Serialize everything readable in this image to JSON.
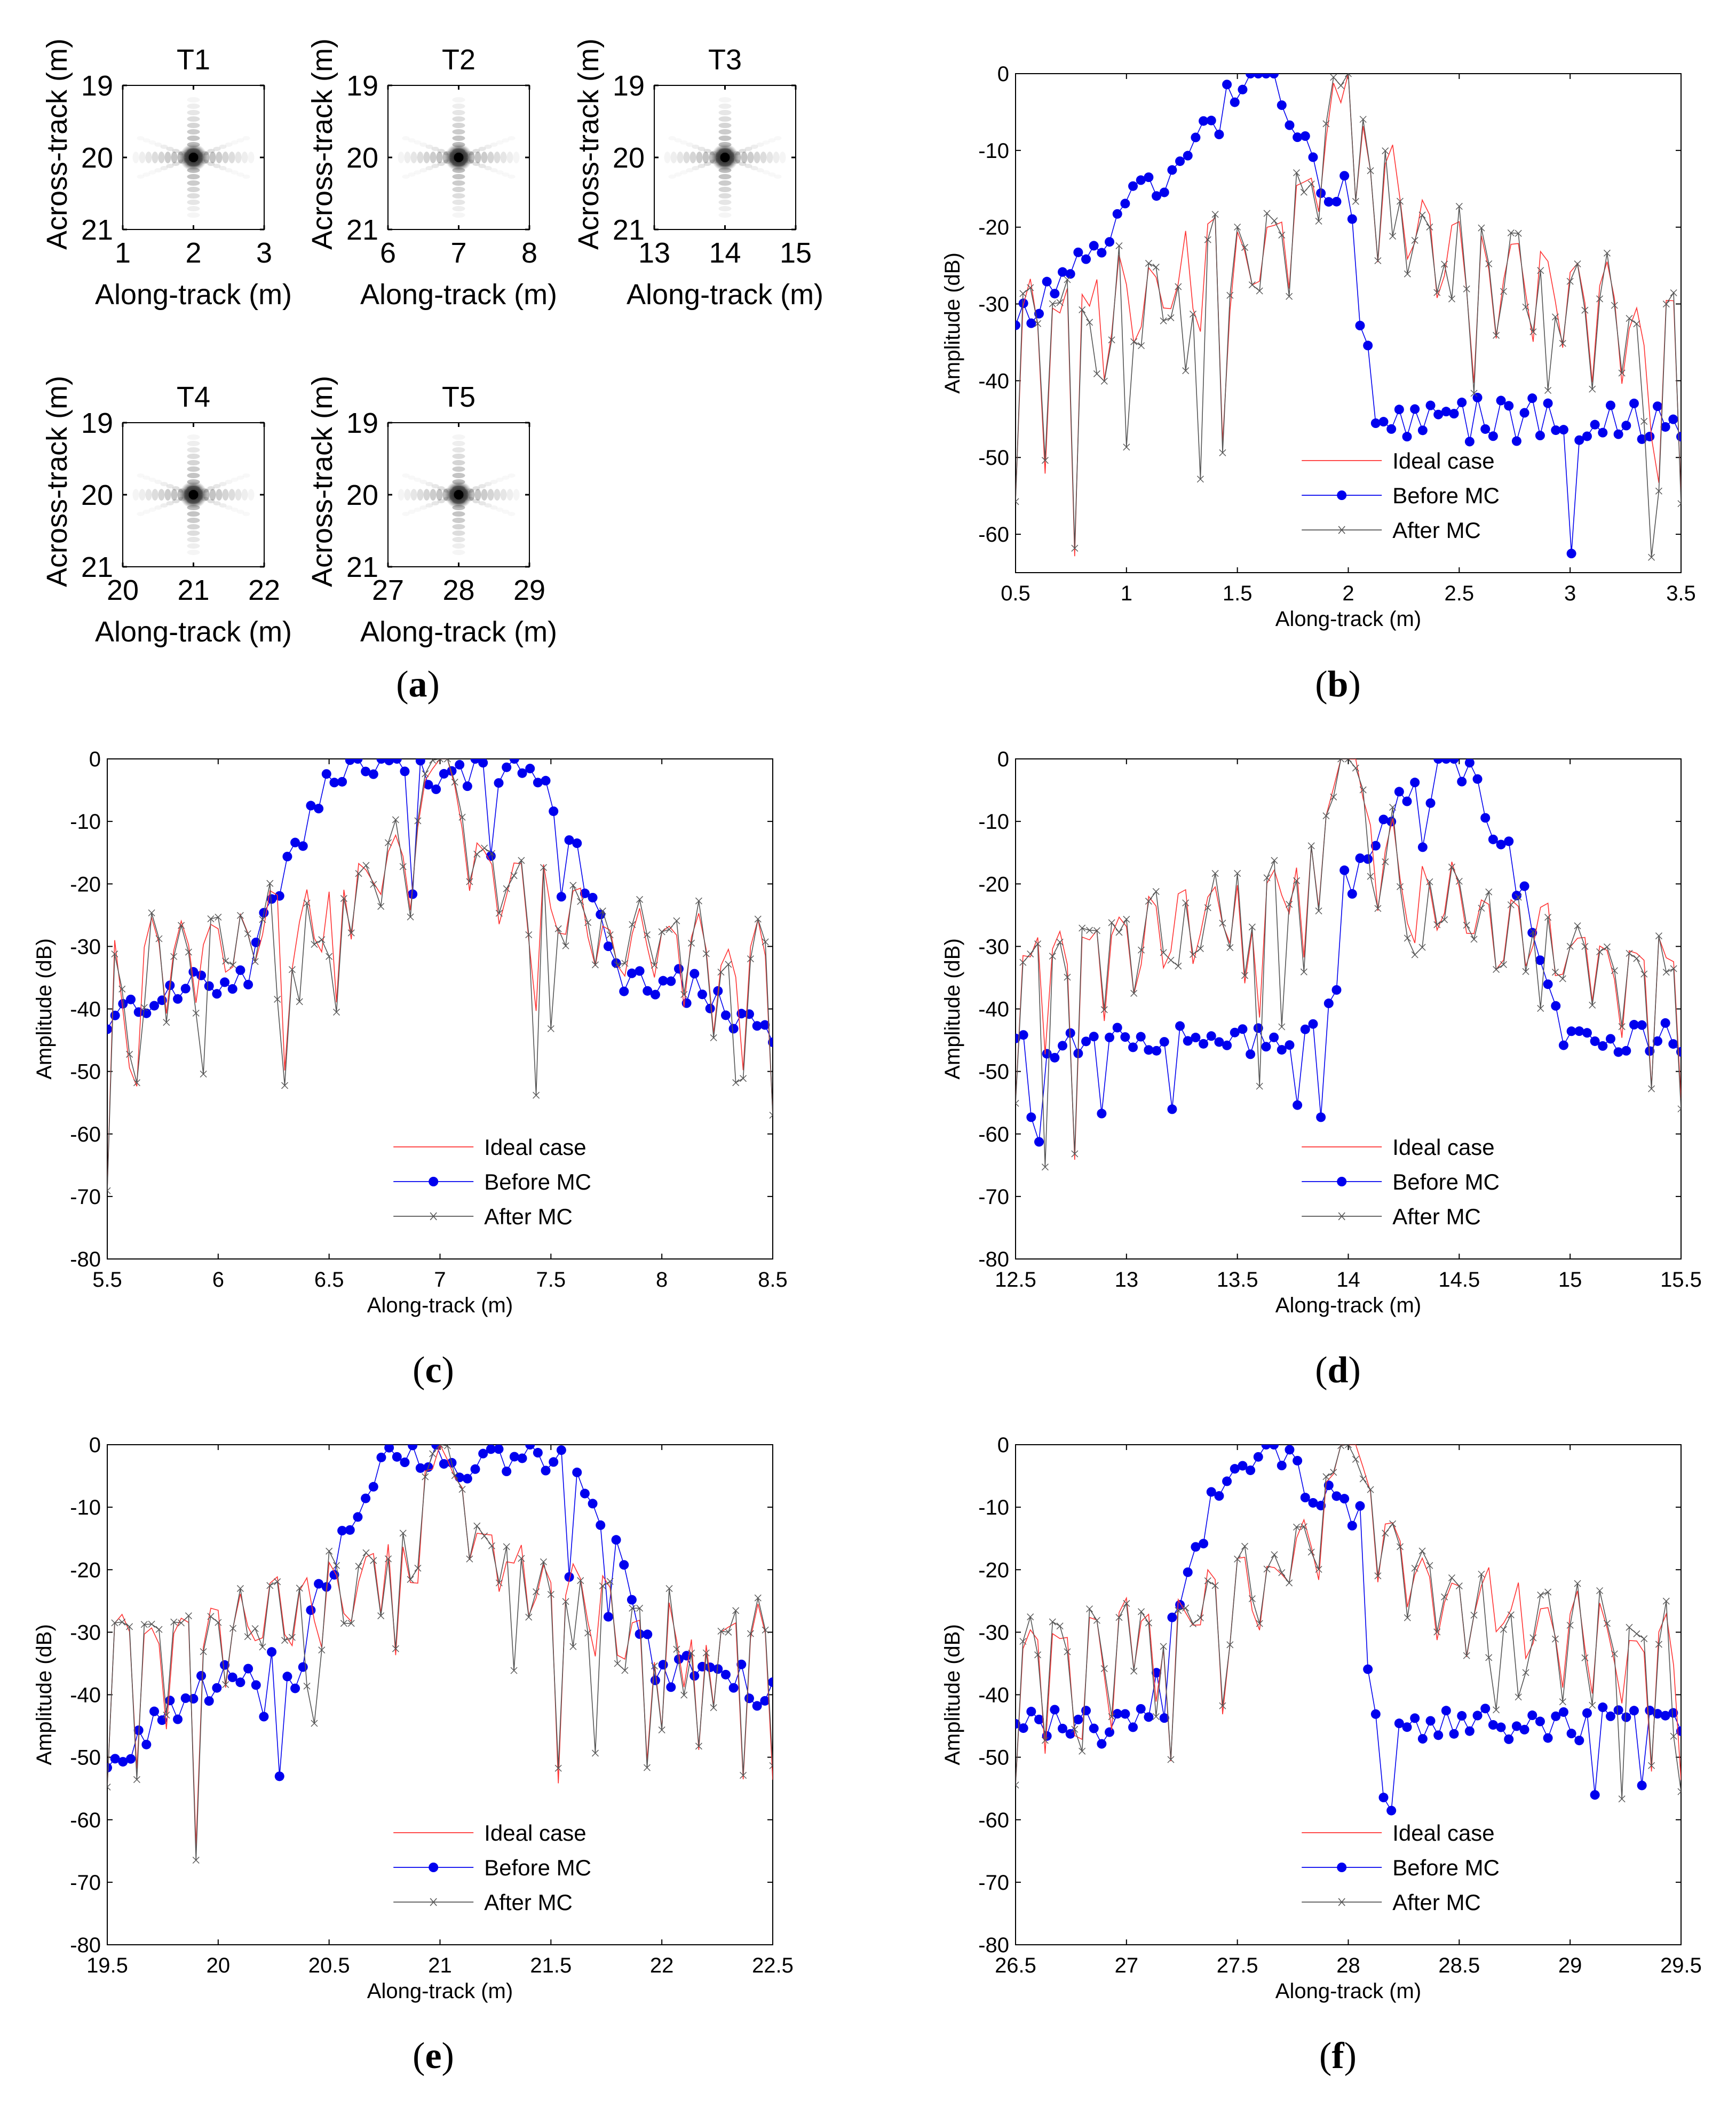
{
  "image_panels": {
    "ylabel": "Across-track (m)",
    "xlabel": "Along-track (m)",
    "yticks": [
      "19",
      "20",
      "21"
    ],
    "items": [
      {
        "title": "T1",
        "xticks": [
          "1",
          "2",
          "3"
        ],
        "xc": 2
      },
      {
        "title": "T2",
        "xticks": [
          "6",
          "7",
          "8"
        ],
        "xc": 7
      },
      {
        "title": "T3",
        "xticks": [
          "13",
          "14",
          "15"
        ],
        "xc": 14
      },
      {
        "title": "T4",
        "xticks": [
          "20",
          "21",
          "22"
        ],
        "xc": 21
      },
      {
        "title": "T5",
        "xticks": [
          "27",
          "28",
          "29"
        ],
        "xc": 28
      }
    ]
  },
  "panel_labels": [
    "a",
    "b",
    "c",
    "d",
    "e",
    "f"
  ],
  "legend": {
    "ideal": "Ideal case",
    "before": "Before MC",
    "after": "After MC"
  },
  "colors": {
    "ideal": "#ff3333",
    "before": "#0000ee",
    "after": "#555555",
    "axis": "#000000"
  },
  "chart_data": [
    {
      "type": "line",
      "title": "",
      "xlabel": "Along-track (m)",
      "ylabel": "Amplitude (dB)",
      "xlim": [
        0.5,
        3.5
      ],
      "ylim": [
        -65,
        0
      ],
      "xticks": [
        0.5,
        1,
        1.5,
        2,
        2.5,
        3,
        3.5
      ],
      "xtick_labels": [
        "0.5",
        "1",
        "1.5",
        "2",
        "2.5",
        "3",
        "3.5"
      ],
      "yticks": [
        0,
        -10,
        -20,
        -30,
        -40,
        -50,
        -60
      ],
      "ytick_labels": [
        "0",
        "-10",
        "-20",
        "-30",
        "-40",
        "-50",
        "-60"
      ],
      "peak_after": 2.0,
      "peak_before": 1.6,
      "before_shoulder": 2.0
    },
    {
      "type": "line",
      "title": "",
      "xlabel": "Along-track (m)",
      "ylabel": "Amplitude (dB)",
      "xlim": [
        5.5,
        8.5
      ],
      "ylim": [
        -80,
        0
      ],
      "xticks": [
        5.5,
        6,
        6.5,
        7,
        7.5,
        8,
        8.5
      ],
      "xtick_labels": [
        "5.5",
        "6",
        "6.5",
        "7",
        "7.5",
        "8",
        "8.5"
      ],
      "yticks": [
        0,
        -10,
        -20,
        -30,
        -40,
        -50,
        -60,
        -70,
        -80
      ],
      "ytick_labels": [
        "0",
        "-10",
        "-20",
        "-30",
        "-40",
        "-50",
        "-60",
        "-70",
        "-80"
      ],
      "peak_after": 7.0,
      "before_peaks": [
        6.72,
        7.22
      ]
    },
    {
      "type": "line",
      "title": "",
      "xlabel": "Along-track (m)",
      "ylabel": "Amplitude (dB)",
      "xlim": [
        12.5,
        15.5
      ],
      "ylim": [
        -80,
        0
      ],
      "xticks": [
        12.5,
        13,
        13.5,
        14,
        14.5,
        15,
        15.5
      ],
      "xtick_labels": [
        "12.5",
        "13",
        "13.5",
        "14",
        "14.5",
        "15",
        "15.5"
      ],
      "yticks": [
        0,
        -10,
        -20,
        -30,
        -40,
        -50,
        -60,
        -70,
        -80
      ],
      "ytick_labels": [
        "0",
        "-10",
        "-20",
        "-30",
        "-40",
        "-50",
        "-60",
        "-70",
        "-80"
      ],
      "peak_after": 14.0,
      "peak_before": 14.42
    },
    {
      "type": "line",
      "title": "",
      "xlabel": "Along-track (m)",
      "ylabel": "Amplitude (dB)",
      "xlim": [
        19.5,
        22.5
      ],
      "ylim": [
        -80,
        0
      ],
      "xticks": [
        19.5,
        20,
        20.5,
        21,
        21.5,
        22,
        22.5
      ],
      "xtick_labels": [
        "19.5",
        "20",
        "20.5",
        "21",
        "21.5",
        "22",
        "22.5"
      ],
      "yticks": [
        0,
        -10,
        -20,
        -30,
        -40,
        -50,
        -60,
        -70,
        -80
      ],
      "ytick_labels": [
        "0",
        "-10",
        "-20",
        "-30",
        "-40",
        "-50",
        "-60",
        "-70",
        "-80"
      ],
      "peak_after": 21.0,
      "before_peaks": [
        20.95,
        21.38
      ]
    },
    {
      "type": "line",
      "title": "",
      "xlabel": "Along-track (m)",
      "ylabel": "Amplitude (dB)",
      "xlim": [
        26.5,
        29.5
      ],
      "ylim": [
        -80,
        0
      ],
      "xticks": [
        26.5,
        27,
        27.5,
        28,
        28.5,
        29,
        29.5
      ],
      "xtick_labels": [
        "26.5",
        "27",
        "27.5",
        "28",
        "28.5",
        "29",
        "29.5"
      ],
      "yticks": [
        0,
        -10,
        -20,
        -30,
        -40,
        -50,
        -60,
        -70,
        -80
      ],
      "ytick_labels": [
        "0",
        "-10",
        "-20",
        "-30",
        "-40",
        "-50",
        "-60",
        "-70",
        "-80"
      ],
      "peak_after": 28.0,
      "peak_before": 27.62
    }
  ]
}
